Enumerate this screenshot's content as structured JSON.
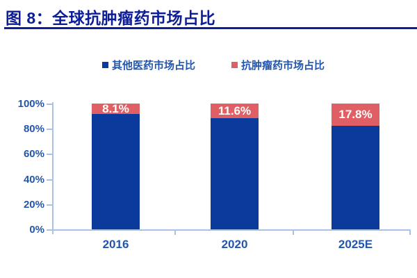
{
  "figure": {
    "title": "图 8：全球抗肿瘤药市场占比"
  },
  "chart_data": {
    "type": "bar",
    "stacked": true,
    "categories": [
      "2016",
      "2020",
      "2025E"
    ],
    "series": [
      {
        "name": "其他医药市场占比",
        "color": "#0A3A9C",
        "values": [
          91.9,
          88.4,
          82.2
        ]
      },
      {
        "name": "抗肿瘤药市场占比",
        "color": "#E05F64",
        "values": [
          8.1,
          11.6,
          17.8
        ]
      }
    ],
    "data_labels": [
      "8.1%",
      "11.6%",
      "17.8%"
    ],
    "data_label_series": "抗肿瘤药市场占比",
    "yticks": [
      "0%",
      "20%",
      "40%",
      "60%",
      "80%",
      "100%"
    ],
    "ylim": [
      0,
      100
    ],
    "legend_position": "top",
    "grid": false
  },
  "colors": {
    "title": "#0D1D96",
    "underline": "#0D2098",
    "axis": "#A6C2E6",
    "tick_label": "#2255AC",
    "data_label": "#FFFFFF"
  }
}
